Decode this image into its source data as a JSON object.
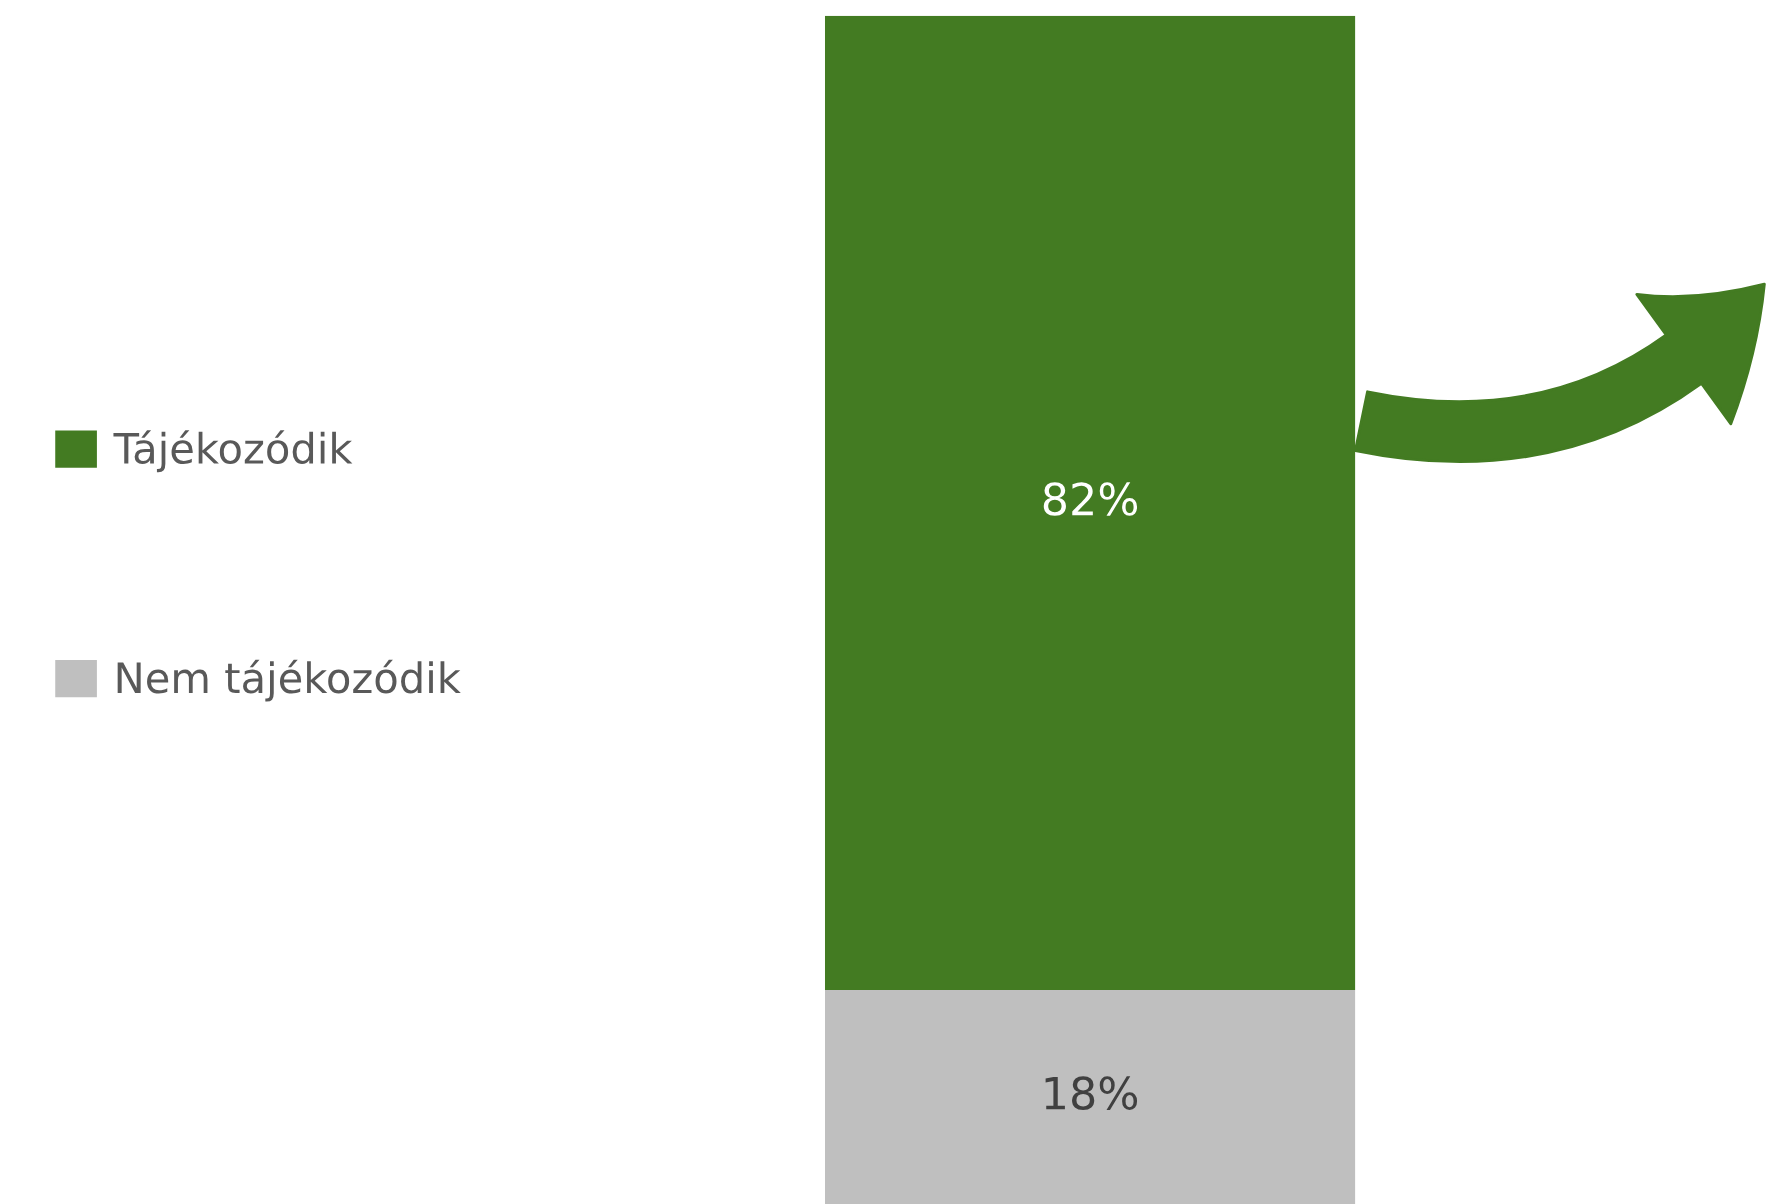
{
  "chart_data": {
    "type": "bar",
    "stacked": true,
    "categories": [
      null
    ],
    "legend": "left",
    "series": [
      {
        "name": "Nem tájékozódik",
        "color": "#bfbfbf",
        "values": [
          18
        ],
        "value_labels": [
          "18%"
        ]
      },
      {
        "name": "Tájékozódik",
        "color": "#437b22",
        "values": [
          82
        ],
        "value_labels": [
          "82%"
        ]
      }
    ]
  }
}
